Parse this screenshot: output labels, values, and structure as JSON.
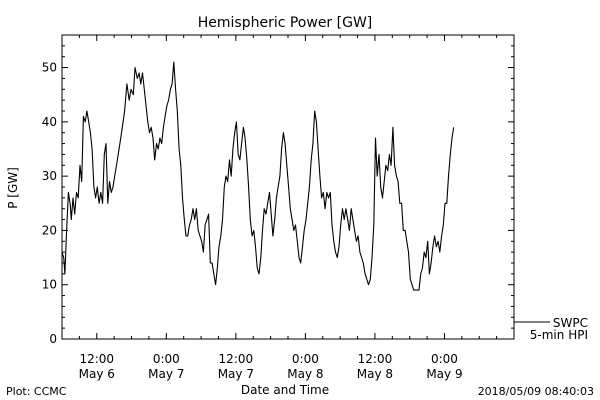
{
  "chart_data": {
    "type": "line",
    "title": "Hemispheric Power [GW]",
    "ylabel": "P [GW]",
    "xlabel": "Date and Time",
    "ylim": [
      0,
      56
    ],
    "xlim": [
      0,
      78
    ],
    "x_units": "hours since 2018-05-06 06:00 UTC",
    "y_ticks": [
      0,
      10,
      20,
      30,
      40,
      50
    ],
    "x_ticks": [
      {
        "x": 6,
        "time": "12:00",
        "date": "May 6"
      },
      {
        "x": 18,
        "time": "0:00",
        "date": "May 7"
      },
      {
        "x": 30,
        "time": "12:00",
        "date": "May 7"
      },
      {
        "x": 42,
        "time": "0:00",
        "date": "May 8"
      },
      {
        "x": 54,
        "time": "12:00",
        "date": "May 8"
      },
      {
        "x": 66,
        "time": "0:00",
        "date": "May 9"
      }
    ],
    "legend": {
      "placement": "bottom-right",
      "entries": [
        "SWPC",
        "5-min HPI"
      ]
    },
    "grid": false,
    "series": [
      {
        "name": "5-min HPI",
        "color": "#000000",
        "points": [
          [
            0.0,
            16
          ],
          [
            0.3,
            15
          ],
          [
            0.5,
            12
          ],
          [
            0.8,
            20
          ],
          [
            1.1,
            27
          ],
          [
            1.4,
            25
          ],
          [
            1.6,
            22
          ],
          [
            1.9,
            26
          ],
          [
            2.2,
            23
          ],
          [
            2.5,
            27
          ],
          [
            2.8,
            26
          ],
          [
            3.1,
            32
          ],
          [
            3.4,
            29
          ],
          [
            3.7,
            41
          ],
          [
            4.0,
            40
          ],
          [
            4.3,
            42
          ],
          [
            4.6,
            40
          ],
          [
            4.9,
            38
          ],
          [
            5.2,
            35
          ],
          [
            5.5,
            28
          ],
          [
            5.8,
            26
          ],
          [
            6.1,
            28
          ],
          [
            6.4,
            25
          ],
          [
            6.7,
            27
          ],
          [
            7.0,
            25
          ],
          [
            7.3,
            34
          ],
          [
            7.6,
            36
          ],
          [
            7.9,
            25
          ],
          [
            8.2,
            29
          ],
          [
            8.5,
            27
          ],
          [
            8.8,
            28
          ],
          [
            9.1,
            30
          ],
          [
            9.4,
            32
          ],
          [
            9.7,
            34
          ],
          [
            10.0,
            36
          ],
          [
            10.4,
            39
          ],
          [
            10.8,
            42
          ],
          [
            11.2,
            47
          ],
          [
            11.6,
            44
          ],
          [
            11.9,
            46
          ],
          [
            12.3,
            45
          ],
          [
            12.6,
            50
          ],
          [
            13.0,
            48
          ],
          [
            13.3,
            49
          ],
          [
            13.6,
            47
          ],
          [
            13.9,
            49
          ],
          [
            14.2,
            46
          ],
          [
            14.5,
            43
          ],
          [
            14.8,
            40
          ],
          [
            15.1,
            38
          ],
          [
            15.4,
            39
          ],
          [
            15.7,
            37
          ],
          [
            16.0,
            33
          ],
          [
            16.3,
            36
          ],
          [
            16.6,
            35
          ],
          [
            16.9,
            37
          ],
          [
            17.2,
            36
          ],
          [
            17.5,
            39
          ],
          [
            17.8,
            41
          ],
          [
            18.1,
            43
          ],
          [
            18.4,
            44
          ],
          [
            18.7,
            46
          ],
          [
            19.0,
            47
          ],
          [
            19.3,
            51
          ],
          [
            19.6,
            46
          ],
          [
            19.9,
            42
          ],
          [
            20.2,
            35
          ],
          [
            20.5,
            32
          ],
          [
            20.8,
            26
          ],
          [
            21.1,
            22
          ],
          [
            21.4,
            19
          ],
          [
            21.7,
            19
          ],
          [
            22.0,
            21
          ],
          [
            22.3,
            22
          ],
          [
            22.6,
            24
          ],
          [
            22.9,
            22
          ],
          [
            23.2,
            24
          ],
          [
            23.5,
            20
          ],
          [
            23.8,
            19
          ],
          [
            24.1,
            18
          ],
          [
            24.4,
            16
          ],
          [
            24.7,
            21
          ],
          [
            25.0,
            22
          ],
          [
            25.3,
            23
          ],
          [
            25.6,
            14
          ],
          [
            25.9,
            14
          ],
          [
            26.2,
            12
          ],
          [
            26.5,
            10
          ],
          [
            26.8,
            13
          ],
          [
            27.1,
            17
          ],
          [
            27.4,
            19
          ],
          [
            27.7,
            22
          ],
          [
            28.0,
            28
          ],
          [
            28.3,
            30
          ],
          [
            28.6,
            29
          ],
          [
            28.9,
            33
          ],
          [
            29.2,
            30
          ],
          [
            29.5,
            35
          ],
          [
            29.8,
            38
          ],
          [
            30.1,
            40
          ],
          [
            30.4,
            34
          ],
          [
            30.7,
            33
          ],
          [
            31.0,
            36
          ],
          [
            31.3,
            39
          ],
          [
            31.6,
            37
          ],
          [
            31.9,
            33
          ],
          [
            32.2,
            28
          ],
          [
            32.5,
            22
          ],
          [
            32.8,
            19
          ],
          [
            33.1,
            20
          ],
          [
            33.4,
            17
          ],
          [
            33.7,
            13
          ],
          [
            34.0,
            12
          ],
          [
            34.3,
            15
          ],
          [
            34.6,
            20
          ],
          [
            34.9,
            24
          ],
          [
            35.2,
            23
          ],
          [
            35.5,
            25
          ],
          [
            35.8,
            27
          ],
          [
            36.1,
            23
          ],
          [
            36.4,
            19
          ],
          [
            36.7,
            22
          ],
          [
            37.0,
            26
          ],
          [
            37.3,
            28
          ],
          [
            37.6,
            30
          ],
          [
            37.9,
            35
          ],
          [
            38.2,
            38
          ],
          [
            38.5,
            36
          ],
          [
            38.8,
            32
          ],
          [
            39.1,
            28
          ],
          [
            39.4,
            24
          ],
          [
            39.7,
            22
          ],
          [
            40.0,
            20
          ],
          [
            40.3,
            21
          ],
          [
            40.6,
            18
          ],
          [
            40.9,
            15
          ],
          [
            41.2,
            14
          ],
          [
            41.5,
            17
          ],
          [
            41.8,
            20
          ],
          [
            42.1,
            22
          ],
          [
            42.4,
            25
          ],
          [
            42.7,
            28
          ],
          [
            43.0,
            33
          ],
          [
            43.3,
            36
          ],
          [
            43.6,
            42
          ],
          [
            43.9,
            40
          ],
          [
            44.2,
            35
          ],
          [
            44.5,
            30
          ],
          [
            44.8,
            26
          ],
          [
            45.1,
            27
          ],
          [
            45.4,
            24
          ],
          [
            45.7,
            27
          ],
          [
            46.0,
            26
          ],
          [
            46.3,
            27
          ],
          [
            46.6,
            21
          ],
          [
            46.9,
            18
          ],
          [
            47.2,
            16
          ],
          [
            47.5,
            15
          ],
          [
            47.8,
            17
          ],
          [
            48.1,
            21
          ],
          [
            48.4,
            24
          ],
          [
            48.7,
            22
          ],
          [
            49.0,
            24
          ],
          [
            49.3,
            22
          ],
          [
            49.6,
            20
          ],
          [
            49.9,
            24
          ],
          [
            50.2,
            22
          ],
          [
            50.5,
            20
          ],
          [
            50.8,
            18
          ],
          [
            51.1,
            19
          ],
          [
            51.4,
            16
          ],
          [
            51.7,
            15
          ],
          [
            52.0,
            14
          ],
          [
            52.3,
            12
          ],
          [
            52.6,
            11
          ],
          [
            52.9,
            10
          ],
          [
            53.2,
            11
          ],
          [
            53.5,
            15
          ],
          [
            53.8,
            21
          ],
          [
            54.1,
            37
          ],
          [
            54.4,
            30
          ],
          [
            54.7,
            34
          ],
          [
            55.0,
            28
          ],
          [
            55.3,
            26
          ],
          [
            55.6,
            29
          ],
          [
            55.9,
            32
          ],
          [
            56.2,
            31
          ],
          [
            56.5,
            34
          ],
          [
            56.8,
            32
          ],
          [
            57.1,
            39
          ],
          [
            57.4,
            32
          ],
          [
            57.7,
            30
          ],
          [
            58.0,
            29
          ],
          [
            58.3,
            25
          ],
          [
            58.6,
            25
          ],
          [
            58.9,
            20
          ],
          [
            59.2,
            20
          ],
          [
            59.5,
            18
          ],
          [
            59.8,
            16
          ],
          [
            60.1,
            11
          ],
          [
            60.4,
            10
          ],
          [
            60.7,
            9
          ],
          [
            61.0,
            9
          ],
          [
            61.3,
            9
          ],
          [
            61.6,
            9
          ],
          [
            61.9,
            12
          ],
          [
            62.2,
            13
          ],
          [
            62.5,
            16
          ],
          [
            62.8,
            15
          ],
          [
            63.1,
            18
          ],
          [
            63.4,
            12
          ],
          [
            63.7,
            14
          ],
          [
            64.0,
            17
          ],
          [
            64.3,
            19
          ],
          [
            64.6,
            17
          ],
          [
            64.9,
            18
          ],
          [
            65.2,
            16
          ],
          [
            65.5,
            19
          ],
          [
            65.8,
            21
          ],
          [
            66.1,
            25
          ],
          [
            66.4,
            25
          ],
          [
            66.7,
            30
          ],
          [
            67.0,
            34
          ],
          [
            67.3,
            37
          ],
          [
            67.6,
            39
          ]
        ]
      }
    ]
  },
  "footer": {
    "left": "Plot: CCMC",
    "right": "2018/05/09 08:40:03"
  }
}
